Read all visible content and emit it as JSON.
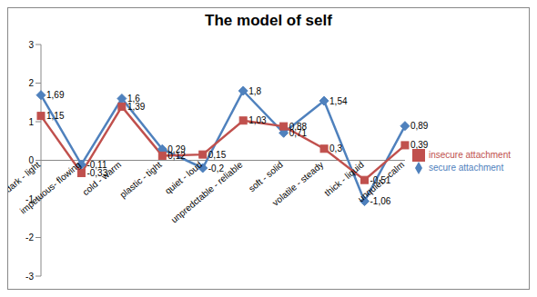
{
  "chart_data": {
    "type": "line",
    "title": "The model of self",
    "categories": [
      "dark - light",
      "impetuous- flowing",
      "cold - warm",
      "plastic - tight",
      "quiet - loud",
      "unpredctable - reliable",
      "soft - solid",
      "volatile - steady",
      "thick - liquid",
      "unquiet - calm"
    ],
    "series": [
      {
        "name": "secure attachment",
        "color": "#4f81bd",
        "marker": "diamond",
        "values": [
          1.69,
          -0.11,
          1.6,
          0.29,
          -0.2,
          1.8,
          0.71,
          1.54,
          -1.06,
          0.89
        ],
        "value_labels": [
          "1,69",
          "-0,11",
          "1,6",
          "0,29",
          "-0,2",
          "1,8",
          "0,71",
          "1,54",
          "-1,06",
          "0,89"
        ]
      },
      {
        "name": "insecure attachment",
        "color": "#c0504d",
        "marker": "square",
        "values": [
          1.15,
          -0.33,
          1.39,
          0.12,
          0.15,
          1.03,
          0.88,
          0.3,
          -0.51,
          0.39
        ],
        "value_labels": [
          "1,15",
          "-0,33",
          "1,39",
          "0,12",
          "0,15",
          "1,03",
          "0,88",
          "0,3",
          "-0,51",
          "0,39"
        ]
      }
    ],
    "ylim": [
      -3,
      3
    ],
    "yticks": [
      -3,
      -2,
      -1,
      0,
      1,
      2,
      3
    ],
    "grid": false,
    "legend": "right",
    "data_labels": true
  }
}
